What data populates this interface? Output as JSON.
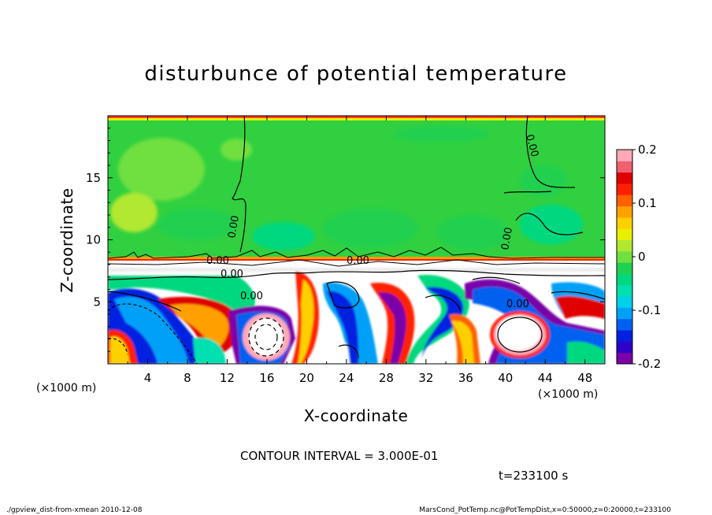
{
  "chart_data": {
    "type": "heatmap",
    "title": "disturbunce of potential temperature",
    "xlabel": "X-coordinate",
    "ylabel": "Z-coordinate",
    "x_unit": "(×1000 m)",
    "y_unit": "(×1000 m)",
    "xlim": [
      0,
      50
    ],
    "ylim": [
      0,
      20
    ],
    "x_ticks": [
      4,
      8,
      12,
      16,
      20,
      24,
      28,
      32,
      36,
      40,
      44,
      48
    ],
    "y_ticks": [
      5,
      10,
      15
    ],
    "colorbar": {
      "vmin": -0.2,
      "vmax": 0.2,
      "ticks": [
        0.2,
        0.1,
        0,
        -0.1,
        -0.2
      ],
      "colors": [
        "#7a00a8",
        "#3000c8",
        "#0020e0",
        "#0060f0",
        "#00a0f8",
        "#00d0e8",
        "#00e0b0",
        "#00d880",
        "#20d050",
        "#70e040",
        "#b0e830",
        "#e8f000",
        "#ffd000",
        "#ffa000",
        "#ff6000",
        "#ff2000",
        "#e00000",
        "#f06070",
        "#ffa8b8"
      ]
    },
    "contour_interval": "CONTOUR INTERVAL = 3.000E-01",
    "contour_labels": [
      "0.00",
      "0.00",
      "0.00",
      "0.00",
      "0.00",
      "0.00",
      "0.00",
      "0.00"
    ],
    "time_label": "t=233100 s"
  },
  "footer": {
    "left": "./gpview_dist-from-xmean   2010-12-08",
    "right": "MarsCond_PotTemp.nc@PotTempDist,x=0:50000,z=0:20000,t=233100"
  }
}
